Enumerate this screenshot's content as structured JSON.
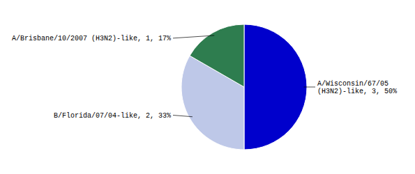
{
  "chart_data": {
    "type": "pie",
    "categories": [
      "A/Wisconsin/67/05\n(H3N2)-like, 3, 50%",
      "B/Florida/07/04-like, 2, 33%",
      "A/Brisbane/10/2007 (H3N2)-like, 1, 17%"
    ],
    "values": [
      3,
      2,
      1
    ],
    "colors": [
      "#0000CC",
      "#BEC8E8",
      "#2E7D4F"
    ]
  }
}
